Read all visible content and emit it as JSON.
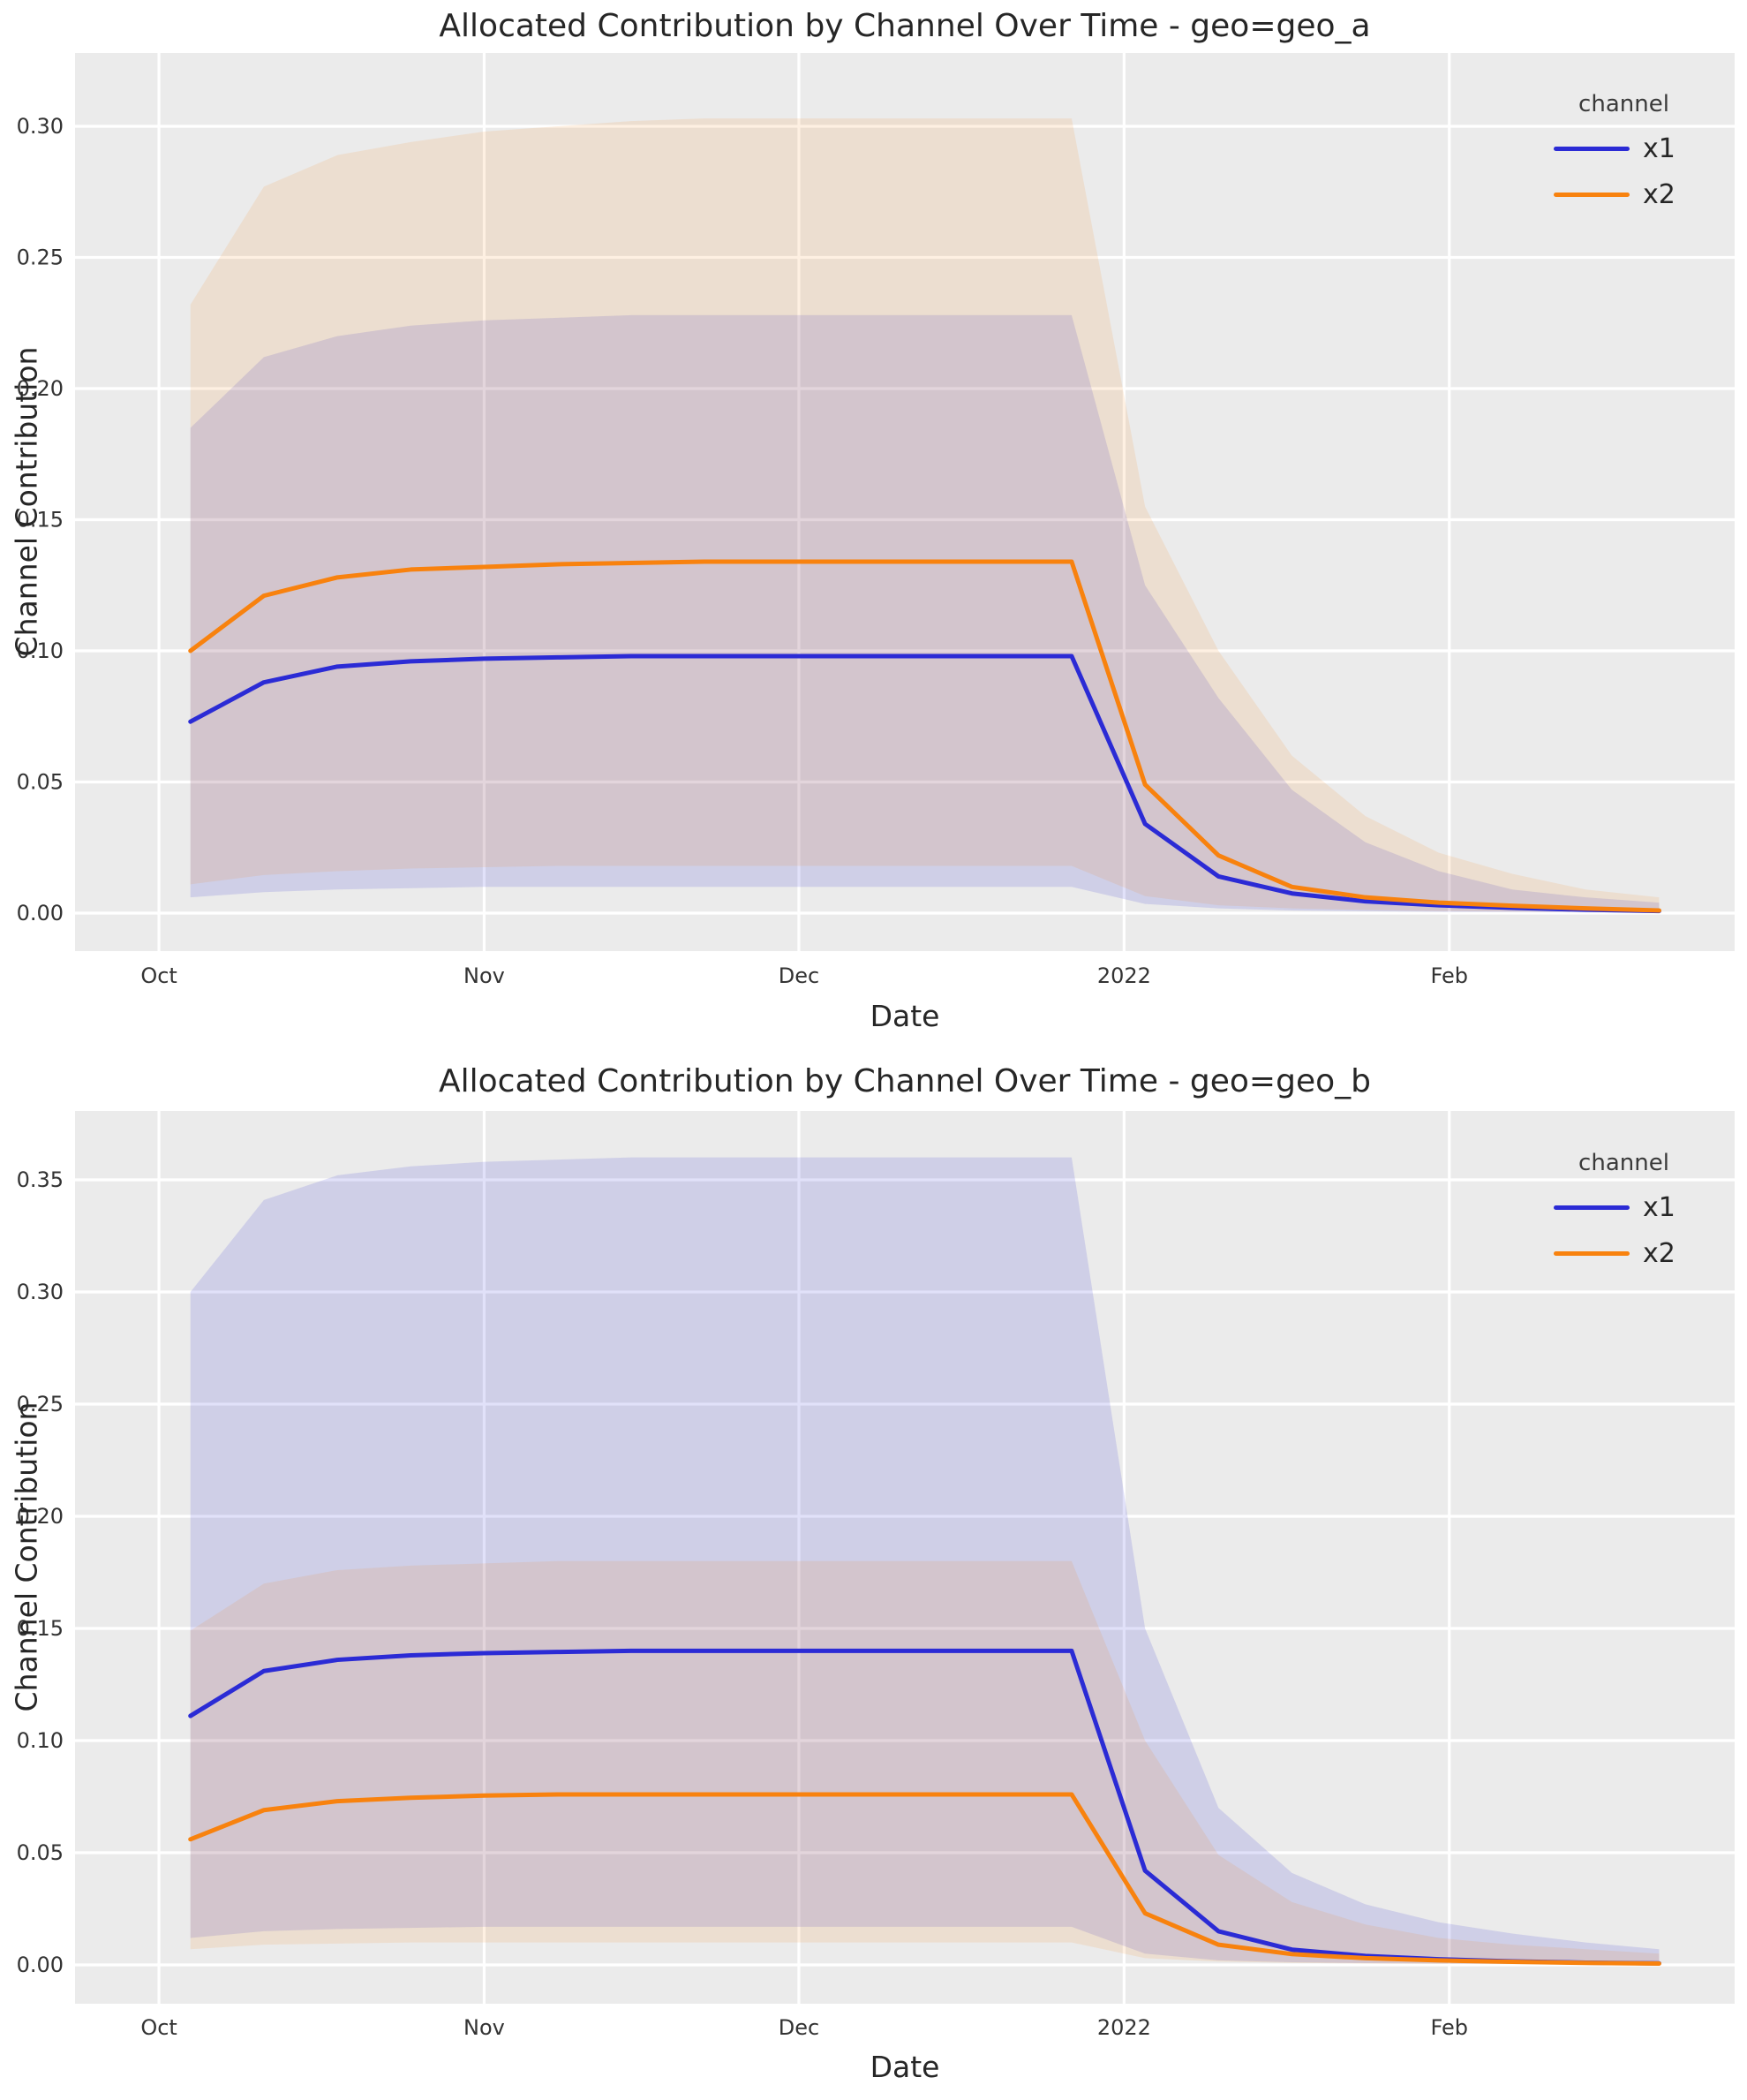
{
  "chart_data": [
    {
      "type": "line",
      "title": "Allocated Contribution by Channel Over Time - geo=geo_a",
      "xlabel": "Date",
      "ylabel": "Channel Contribution",
      "legend_title": "channel",
      "legend_position": "upper right",
      "grid": true,
      "background_color": "#ebebeb",
      "gridline_color": "#ffffff",
      "x": [
        "2021-10-04",
        "2021-10-11",
        "2021-10-18",
        "2021-10-25",
        "2021-11-01",
        "2021-11-08",
        "2021-11-15",
        "2021-11-22",
        "2021-11-29",
        "2021-12-06",
        "2021-12-13",
        "2021-12-20",
        "2021-12-27",
        "2022-01-03",
        "2022-01-10",
        "2022-01-17",
        "2022-01-24",
        "2022-01-31",
        "2022-02-07",
        "2022-02-14",
        "2022-02-21"
      ],
      "x_tick_labels": [
        "Oct",
        "Nov",
        "Dec",
        "2022",
        "Feb"
      ],
      "x_tick_days": [
        0,
        31,
        61,
        92,
        123
      ],
      "y_tick_labels": [
        "0.00",
        "0.05",
        "0.10",
        "0.15",
        "0.20",
        "0.25",
        "0.30"
      ],
      "ylim": [
        -0.01448,
        0.32795
      ],
      "series": [
        {
          "name": "x1",
          "color": "#2b2bd5",
          "band_alpha": 0.14,
          "values": [
            0.073,
            0.088,
            0.094,
            0.096,
            0.097,
            0.0975,
            0.098,
            0.098,
            0.098,
            0.098,
            0.098,
            0.098,
            0.098,
            0.034,
            0.014,
            0.0075,
            0.0045,
            0.003,
            0.002,
            0.0013,
            0.0008
          ],
          "ci_lower": [
            0.006,
            0.008,
            0.009,
            0.0095,
            0.01,
            0.01,
            0.01,
            0.01,
            0.01,
            0.01,
            0.01,
            0.01,
            0.01,
            0.0035,
            0.0018,
            0.001,
            0.0007,
            0.0005,
            0.0004,
            0.0003,
            0.0002
          ],
          "ci_upper": [
            0.185,
            0.212,
            0.22,
            0.224,
            0.226,
            0.227,
            0.228,
            0.228,
            0.228,
            0.228,
            0.228,
            0.228,
            0.228,
            0.125,
            0.082,
            0.047,
            0.027,
            0.016,
            0.009,
            0.006,
            0.004
          ]
        },
        {
          "name": "x2",
          "color": "#f8820e",
          "band_alpha": 0.12,
          "values": [
            0.1,
            0.121,
            0.128,
            0.131,
            0.132,
            0.133,
            0.1335,
            0.134,
            0.134,
            0.134,
            0.134,
            0.134,
            0.134,
            0.049,
            0.022,
            0.01,
            0.006,
            0.004,
            0.0028,
            0.0018,
            0.001
          ],
          "ci_lower": [
            0.011,
            0.0145,
            0.016,
            0.017,
            0.0175,
            0.018,
            0.018,
            0.018,
            0.018,
            0.018,
            0.018,
            0.018,
            0.018,
            0.0065,
            0.003,
            0.0018,
            0.0012,
            0.0008,
            0.0006,
            0.0004,
            0.0003
          ],
          "ci_upper": [
            0.232,
            0.277,
            0.289,
            0.294,
            0.298,
            0.3,
            0.302,
            0.303,
            0.303,
            0.303,
            0.303,
            0.303,
            0.303,
            0.155,
            0.1,
            0.06,
            0.037,
            0.023,
            0.015,
            0.009,
            0.006
          ]
        }
      ]
    },
    {
      "type": "line",
      "title": "Allocated Contribution by Channel Over Time - geo=geo_b",
      "xlabel": "Date",
      "ylabel": "Channel Contribution",
      "legend_title": "channel",
      "legend_position": "upper right",
      "grid": true,
      "background_color": "#ebebeb",
      "gridline_color": "#ffffff",
      "x": [
        "2021-10-04",
        "2021-10-11",
        "2021-10-18",
        "2021-10-25",
        "2021-11-01",
        "2021-11-08",
        "2021-11-15",
        "2021-11-22",
        "2021-11-29",
        "2021-12-06",
        "2021-12-13",
        "2021-12-20",
        "2021-12-27",
        "2022-01-03",
        "2022-01-10",
        "2022-01-17",
        "2022-01-24",
        "2022-01-31",
        "2022-02-07",
        "2022-02-14",
        "2022-02-21"
      ],
      "x_tick_labels": [
        "Oct",
        "Nov",
        "Dec",
        "2022",
        "Feb"
      ],
      "x_tick_days": [
        0,
        31,
        61,
        92,
        123
      ],
      "y_tick_labels": [
        "0.00",
        "0.05",
        "0.10",
        "0.15",
        "0.20",
        "0.25",
        "0.30",
        "0.35"
      ],
      "ylim": [
        -0.01732,
        0.38071
      ],
      "series": [
        {
          "name": "x1",
          "color": "#2b2bd5",
          "band_alpha": 0.14,
          "values": [
            0.111,
            0.131,
            0.136,
            0.138,
            0.139,
            0.1395,
            0.14,
            0.14,
            0.14,
            0.14,
            0.14,
            0.14,
            0.14,
            0.042,
            0.015,
            0.0068,
            0.004,
            0.0025,
            0.0016,
            0.001,
            0.0007
          ],
          "ci_lower": [
            0.012,
            0.015,
            0.016,
            0.0165,
            0.017,
            0.017,
            0.017,
            0.017,
            0.017,
            0.017,
            0.017,
            0.017,
            0.017,
            0.005,
            0.002,
            0.0012,
            0.0008,
            0.0006,
            0.0004,
            0.0003,
            0.0002
          ],
          "ci_upper": [
            0.3,
            0.341,
            0.352,
            0.356,
            0.358,
            0.359,
            0.36,
            0.36,
            0.36,
            0.36,
            0.36,
            0.36,
            0.36,
            0.15,
            0.07,
            0.041,
            0.027,
            0.019,
            0.014,
            0.01,
            0.007
          ]
        },
        {
          "name": "x2",
          "color": "#f8820e",
          "band_alpha": 0.12,
          "values": [
            0.056,
            0.069,
            0.073,
            0.0745,
            0.0755,
            0.076,
            0.076,
            0.076,
            0.076,
            0.076,
            0.076,
            0.076,
            0.076,
            0.023,
            0.009,
            0.0048,
            0.003,
            0.002,
            0.0014,
            0.0009,
            0.0006
          ],
          "ci_lower": [
            0.007,
            0.009,
            0.0095,
            0.01,
            0.01,
            0.01,
            0.01,
            0.01,
            0.01,
            0.01,
            0.01,
            0.01,
            0.01,
            0.003,
            0.0015,
            0.0009,
            0.0006,
            0.0004,
            0.0003,
            0.0002,
            0.0002
          ],
          "ci_upper": [
            0.149,
            0.17,
            0.176,
            0.178,
            0.179,
            0.18,
            0.18,
            0.18,
            0.18,
            0.18,
            0.18,
            0.18,
            0.18,
            0.1,
            0.049,
            0.028,
            0.018,
            0.012,
            0.009,
            0.007,
            0.005
          ]
        }
      ]
    }
  ]
}
